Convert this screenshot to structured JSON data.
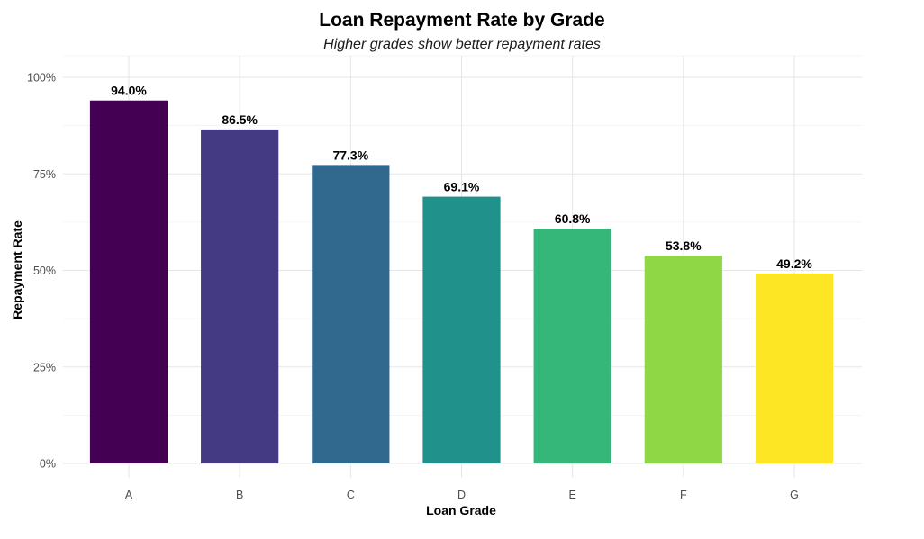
{
  "chart_data": {
    "type": "bar",
    "title": "Loan Repayment Rate by Grade",
    "subtitle": "Higher grades show better repayment rates",
    "xlabel": "Loan Grade",
    "ylabel": "Repayment Rate",
    "categories": [
      "A",
      "B",
      "C",
      "D",
      "E",
      "F",
      "G"
    ],
    "values": [
      94.0,
      86.5,
      77.3,
      69.1,
      60.8,
      53.8,
      49.2
    ],
    "data_labels": [
      "94.0%",
      "86.5%",
      "77.3%",
      "69.1%",
      "60.8%",
      "53.8%",
      "49.2%"
    ],
    "colors": [
      "#440154",
      "#443983",
      "#31688e",
      "#21918c",
      "#35b779",
      "#8fd744",
      "#fde725"
    ],
    "ylim": [
      0,
      100
    ],
    "yticks": [
      0,
      25,
      50,
      75,
      100
    ],
    "ytick_labels": [
      "0%",
      "25%",
      "50%",
      "75%",
      "100%"
    ],
    "grid": true,
    "legend": "none"
  }
}
